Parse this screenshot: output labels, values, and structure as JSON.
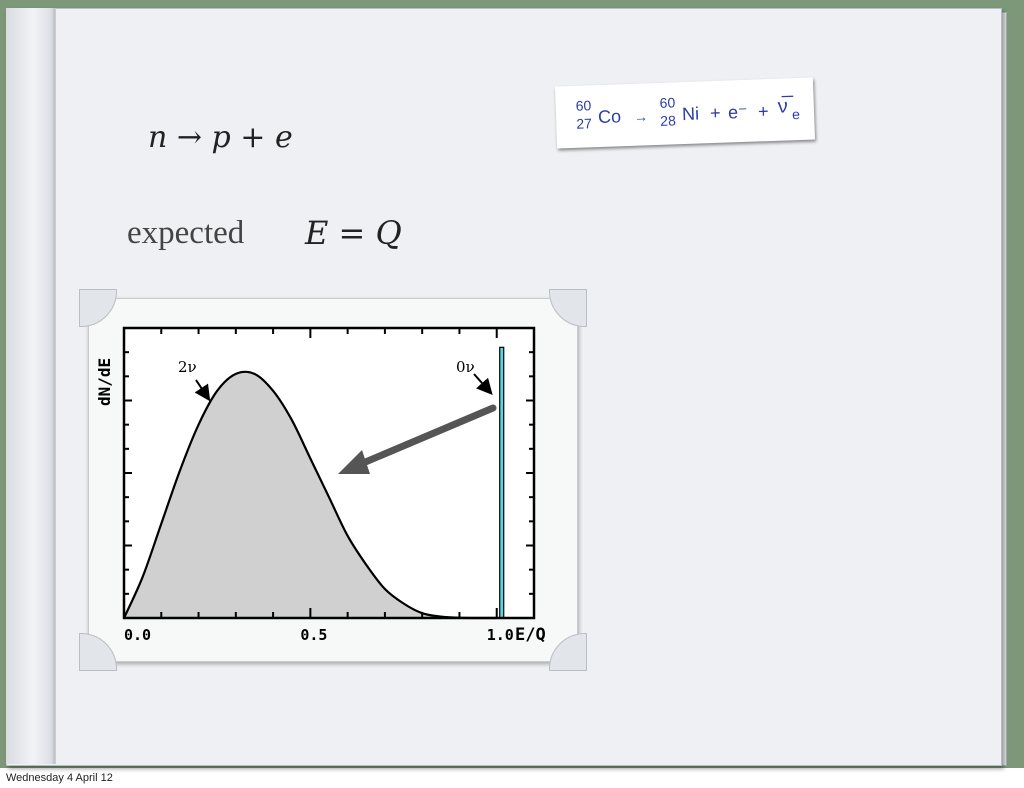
{
  "equation_decay": "n → p + e",
  "expected_label": "expected",
  "equation_expected": "E = Q",
  "reaction": {
    "parent": "Co",
    "parent_mass": "60",
    "parent_z": "27",
    "arrow": "→",
    "daughter": "Ni",
    "daughter_mass": "60",
    "daughter_z": "28",
    "plus1": "+",
    "electron": "e⁻",
    "plus2": "+",
    "antineutrino": "ν̅",
    "antineutrino_sub": "e"
  },
  "chart_data": {
    "type": "area",
    "xlabel": "E/Q",
    "ylabel": "dN/dE",
    "xlim": [
      0,
      1.1
    ],
    "ylim": [
      0,
      1.2
    ],
    "x_ticks": [
      "0.0",
      "0.5",
      "1.0"
    ],
    "x_tick_values": [
      0,
      0.5,
      1.0
    ],
    "series": [
      {
        "name": "2ν",
        "x": [
          0,
          0.05,
          0.1,
          0.15,
          0.2,
          0.25,
          0.3,
          0.35,
          0.4,
          0.45,
          0.5,
          0.55,
          0.6,
          0.65,
          0.7,
          0.75,
          0.8,
          0.85,
          0.9,
          0.95,
          1.0
        ],
        "values": [
          0,
          0.17,
          0.39,
          0.61,
          0.8,
          0.94,
          1.01,
          1.01,
          0.94,
          0.82,
          0.66,
          0.5,
          0.34,
          0.22,
          0.12,
          0.06,
          0.02,
          0.006,
          0.001,
          0,
          0
        ]
      },
      {
        "name": "0ν",
        "x": [
          1.0
        ],
        "values": [
          1.12
        ]
      }
    ],
    "grid": false
  },
  "colors": {
    "fill_2nu": "#d0d0d0",
    "line_0nu": "#5bd6e0",
    "arrow": "#555555",
    "reaction_text": "#2a3ea8"
  },
  "footer_date": "Wednesday 4 April 12"
}
